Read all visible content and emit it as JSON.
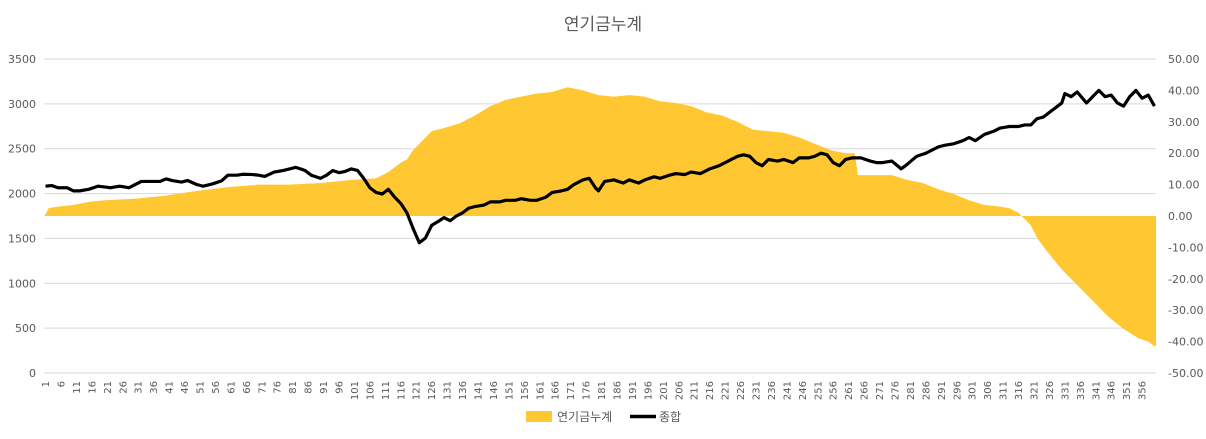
{
  "chart_data": {
    "type": "area+line",
    "title": "연기금누계",
    "colors": {
      "area": "#FFC832",
      "line": "#000000",
      "grid": "#D9D9D9",
      "text": "#595959"
    },
    "y_left": {
      "min": 0,
      "max": 3500,
      "step": 500,
      "ticks": [
        "0",
        "500",
        "1000",
        "1500",
        "2000",
        "2500",
        "3000",
        "3500"
      ]
    },
    "y_right": {
      "min": -50,
      "max": 50,
      "step": 10,
      "ticks": [
        "-50.00",
        "-40.00",
        "-30.00",
        "-20.00",
        "-10.00",
        "0.00",
        "10.00",
        "20.00",
        "30.00",
        "40.00",
        "50.00"
      ]
    },
    "x": {
      "min": 1,
      "max": 360,
      "tick_start": 1,
      "tick_step": 5,
      "labels": [
        "1",
        "6",
        "11",
        "16",
        "21",
        "26",
        "31",
        "36",
        "41",
        "46",
        "51",
        "56",
        "61",
        "66",
        "71",
        "76",
        "81",
        "86",
        "91",
        "96",
        "101",
        "106",
        "111",
        "116",
        "121",
        "126",
        "131",
        "136",
        "141",
        "146",
        "151",
        "156",
        "161",
        "166",
        "171",
        "176",
        "181",
        "186",
        "191",
        "196",
        "201",
        "206",
        "211",
        "216",
        "221",
        "226",
        "231",
        "236",
        "241",
        "246",
        "251",
        "256",
        "261",
        "266",
        "271",
        "276",
        "281",
        "286",
        "291",
        "296",
        "301",
        "306",
        "311",
        "316",
        "321",
        "326",
        "331",
        "336",
        "341",
        "346",
        "351",
        "356"
      ]
    },
    "legend_position": "bottom",
    "series": [
      {
        "name": "연기금누계",
        "kind": "area",
        "axis": "right",
        "points": [
          [
            1,
            0.5
          ],
          [
            2,
            2.5
          ],
          [
            5,
            3
          ],
          [
            10,
            3.5
          ],
          [
            15,
            4.5
          ],
          [
            20,
            5
          ],
          [
            30,
            5.5
          ],
          [
            40,
            6.5
          ],
          [
            50,
            8
          ],
          [
            60,
            9.2
          ],
          [
            70,
            10
          ],
          [
            80,
            10
          ],
          [
            90,
            10.5
          ],
          [
            100,
            11.5
          ],
          [
            108,
            12
          ],
          [
            112,
            14
          ],
          [
            116,
            17
          ],
          [
            118,
            18
          ],
          [
            120,
            21
          ],
          [
            123,
            24
          ],
          [
            126,
            27
          ],
          [
            130,
            28
          ],
          [
            135,
            29.5
          ],
          [
            140,
            32
          ],
          [
            145,
            35
          ],
          [
            150,
            37
          ],
          [
            155,
            38
          ],
          [
            160,
            39
          ],
          [
            165,
            39.5
          ],
          [
            170,
            41
          ],
          [
            175,
            40
          ],
          [
            180,
            38.5
          ],
          [
            185,
            38
          ],
          [
            190,
            38.5
          ],
          [
            195,
            38
          ],
          [
            200,
            36.5
          ],
          [
            205,
            36
          ],
          [
            210,
            35
          ],
          [
            215,
            33
          ],
          [
            220,
            32
          ],
          [
            225,
            30
          ],
          [
            230,
            27.5
          ],
          [
            235,
            27
          ],
          [
            240,
            26.5
          ],
          [
            245,
            25
          ],
          [
            250,
            23
          ],
          [
            255,
            21
          ],
          [
            260,
            20
          ],
          [
            263,
            20
          ],
          [
            264,
            13
          ],
          [
            270,
            13
          ],
          [
            275,
            13
          ],
          [
            280,
            11.5
          ],
          [
            285,
            10.5
          ],
          [
            290,
            8.5
          ],
          [
            295,
            7
          ],
          [
            300,
            5
          ],
          [
            305,
            3.5
          ],
          [
            310,
            3
          ],
          [
            313,
            2.5
          ],
          [
            316,
            1
          ],
          [
            318,
            -1
          ],
          [
            320,
            -3
          ],
          [
            322,
            -7
          ],
          [
            325,
            -11
          ],
          [
            330,
            -17
          ],
          [
            335,
            -22
          ],
          [
            340,
            -27
          ],
          [
            345,
            -32
          ],
          [
            350,
            -36
          ],
          [
            355,
            -39
          ],
          [
            358,
            -40
          ],
          [
            360,
            -41.5
          ]
        ]
      },
      {
        "name": "종합",
        "kind": "line",
        "axis": "right",
        "points": [
          [
            1,
            9.5
          ],
          [
            3,
            9.7
          ],
          [
            5,
            9
          ],
          [
            8,
            9
          ],
          [
            10,
            8
          ],
          [
            12,
            8
          ],
          [
            15,
            8.5
          ],
          [
            18,
            9.5
          ],
          [
            22,
            9
          ],
          [
            25,
            9.5
          ],
          [
            28,
            9
          ],
          [
            30,
            10
          ],
          [
            32,
            11
          ],
          [
            35,
            11
          ],
          [
            38,
            11
          ],
          [
            40,
            11.8
          ],
          [
            42,
            11.3
          ],
          [
            45,
            10.8
          ],
          [
            47,
            11.3
          ],
          [
            50,
            10
          ],
          [
            52,
            9.5
          ],
          [
            55,
            10.2
          ],
          [
            58,
            11.2
          ],
          [
            60,
            13
          ],
          [
            63,
            13
          ],
          [
            65,
            13.3
          ],
          [
            68,
            13.2
          ],
          [
            70,
            13
          ],
          [
            72,
            12.6
          ],
          [
            75,
            14
          ],
          [
            78,
            14.5
          ],
          [
            80,
            15
          ],
          [
            82,
            15.5
          ],
          [
            85,
            14.5
          ],
          [
            87,
            13
          ],
          [
            90,
            12
          ],
          [
            92,
            13
          ],
          [
            94,
            14.5
          ],
          [
            96,
            13.8
          ],
          [
            98,
            14.2
          ],
          [
            100,
            15
          ],
          [
            102,
            14.5
          ],
          [
            104,
            12
          ],
          [
            106,
            9
          ],
          [
            108,
            7.5
          ],
          [
            110,
            7
          ],
          [
            112,
            8.5
          ],
          [
            114,
            6
          ],
          [
            116,
            4
          ],
          [
            118,
            1
          ],
          [
            120,
            -4
          ],
          [
            122,
            -8.5
          ],
          [
            124,
            -7
          ],
          [
            126,
            -3
          ],
          [
            128,
            -1.8
          ],
          [
            130,
            -0.5
          ],
          [
            132,
            -1.5
          ],
          [
            134,
            0
          ],
          [
            136,
            1
          ],
          [
            138,
            2.5
          ],
          [
            140,
            3
          ],
          [
            143,
            3.5
          ],
          [
            145,
            4.5
          ],
          [
            148,
            4.5
          ],
          [
            150,
            5
          ],
          [
            153,
            5
          ],
          [
            155,
            5.5
          ],
          [
            158,
            5
          ],
          [
            160,
            5
          ],
          [
            163,
            6
          ],
          [
            165,
            7.5
          ],
          [
            168,
            8
          ],
          [
            170,
            8.5
          ],
          [
            172,
            10
          ],
          [
            175,
            11.5
          ],
          [
            177,
            12
          ],
          [
            179,
            9
          ],
          [
            180,
            8
          ],
          [
            182,
            11
          ],
          [
            185,
            11.5
          ],
          [
            188,
            10.5
          ],
          [
            190,
            11.5
          ],
          [
            193,
            10.5
          ],
          [
            195,
            11.5
          ],
          [
            198,
            12.5
          ],
          [
            200,
            12
          ],
          [
            203,
            13
          ],
          [
            205,
            13.5
          ],
          [
            208,
            13.2
          ],
          [
            210,
            14
          ],
          [
            213,
            13.5
          ],
          [
            216,
            15
          ],
          [
            219,
            16
          ],
          [
            222,
            17.5
          ],
          [
            225,
            19
          ],
          [
            227,
            19.5
          ],
          [
            229,
            19
          ],
          [
            231,
            17
          ],
          [
            233,
            16
          ],
          [
            235,
            18
          ],
          [
            238,
            17.5
          ],
          [
            240,
            18
          ],
          [
            243,
            17
          ],
          [
            245,
            18.5
          ],
          [
            248,
            18.5
          ],
          [
            250,
            19
          ],
          [
            252,
            20
          ],
          [
            254,
            19.5
          ],
          [
            256,
            17
          ],
          [
            258,
            16
          ],
          [
            260,
            18
          ],
          [
            262,
            18.5
          ],
          [
            265,
            18.5
          ],
          [
            268,
            17.5
          ],
          [
            270,
            17
          ],
          [
            272,
            17
          ],
          [
            275,
            17.5
          ],
          [
            278,
            15
          ],
          [
            280,
            16.5
          ],
          [
            283,
            19
          ],
          [
            286,
            20
          ],
          [
            290,
            22
          ],
          [
            292,
            22.5
          ],
          [
            295,
            23
          ],
          [
            298,
            24
          ],
          [
            300,
            25
          ],
          [
            302,
            24
          ],
          [
            305,
            26
          ],
          [
            308,
            27
          ],
          [
            310,
            28
          ],
          [
            313,
            28.5
          ],
          [
            316,
            28.5
          ],
          [
            318,
            29
          ],
          [
            320,
            29
          ],
          [
            322,
            31
          ],
          [
            324,
            31.5
          ],
          [
            326,
            33
          ],
          [
            328,
            34.5
          ],
          [
            330,
            36
          ],
          [
            331,
            39
          ],
          [
            333,
            38
          ],
          [
            335,
            39.5
          ],
          [
            338,
            36
          ],
          [
            340,
            38
          ],
          [
            342,
            40
          ],
          [
            344,
            38
          ],
          [
            346,
            38.5
          ],
          [
            348,
            36
          ],
          [
            350,
            35
          ],
          [
            352,
            38
          ],
          [
            354,
            40
          ],
          [
            356,
            37.5
          ],
          [
            358,
            38.5
          ],
          [
            360,
            35
          ]
        ]
      }
    ]
  }
}
